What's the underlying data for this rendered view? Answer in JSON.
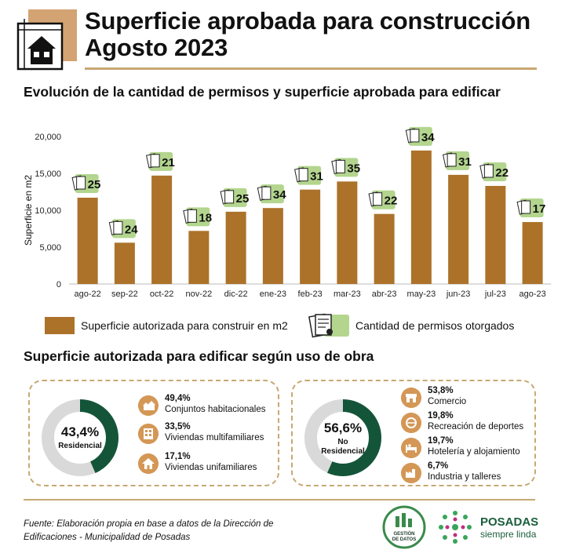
{
  "header": {
    "title_line1": "Superficie aprobada para construcción",
    "title_line2": "Agosto 2023"
  },
  "section1_title": "Evolución de la cantidad de permisos y superficie aprobada para edificar",
  "chart_data": {
    "type": "bar",
    "title": "Evolución de la cantidad de permisos y superficie aprobada para edificar",
    "xlabel": "",
    "ylabel": "Superficie en m2",
    "ylim": [
      0,
      20000
    ],
    "yticks": [
      0,
      5000,
      10000,
      15000,
      20000
    ],
    "ytick_labels": [
      "0",
      "5,000",
      "10,000",
      "15,000",
      "20,000"
    ],
    "categories": [
      "ago-22",
      "sep-22",
      "oct-22",
      "nov-22",
      "dic-22",
      "ene-23",
      "feb-23",
      "mar-23",
      "abr-23",
      "may-23",
      "jun-23",
      "jul-23",
      "ago-23"
    ],
    "series": [
      {
        "name": "Superficie autorizada para construir en m2",
        "values": [
          11700,
          5600,
          14700,
          7200,
          9800,
          10300,
          12800,
          13900,
          9500,
          18100,
          14800,
          13300,
          8400
        ]
      },
      {
        "name": "Cantidad de permisos otorgados",
        "values": [
          25,
          24,
          21,
          18,
          25,
          34,
          31,
          35,
          22,
          34,
          31,
          22,
          17
        ]
      }
    ],
    "colors": {
      "bar": "#ac722a",
      "badge": "#b3d58e"
    }
  },
  "legend": {
    "surface": "Superficie autorizada para construir en m2",
    "permits": "Cantidad de permisos otorgados"
  },
  "section2_title": "Superficie autorizada para edificar según uso de obra",
  "residencial": {
    "pct": "43,4%",
    "label": "Residencial",
    "value": 43.4,
    "items": [
      {
        "pct": "49,4%",
        "name": "Conjuntos habitacionales",
        "icon": "housing-complex-icon"
      },
      {
        "pct": "33,5%",
        "name": "Viviendas multifamiliares",
        "icon": "apartment-building-icon"
      },
      {
        "pct": "17,1%",
        "name": "Viviendas unifamiliares",
        "icon": "house-icon"
      }
    ]
  },
  "no_residencial": {
    "pct": "56,6%",
    "label_line1": "No",
    "label_line2": "Residencial",
    "value": 56.6,
    "items": [
      {
        "pct": "53,8%",
        "name": "Comercio",
        "icon": "store-icon"
      },
      {
        "pct": "19,8%",
        "name": "Recreación de deportes",
        "icon": "sports-icon"
      },
      {
        "pct": "19,7%",
        "name": "Hotelería y alojamiento",
        "icon": "hotel-icon"
      },
      {
        "pct": "6,7%",
        "name": "Industria y talleres",
        "icon": "factory-icon"
      }
    ]
  },
  "colors": {
    "donut": "#14553a",
    "track": "#d9d9d9",
    "accent": "#c8a872",
    "icon_bg": "#d49756"
  },
  "footer": {
    "source_line1": "Fuente: Elaboración propia en base a datos de la Dirección de",
    "source_line2": "Edificaciones - Municipalidad de Posadas",
    "gestion_line1": "GESTIÓN",
    "gestion_line2": "DE DATOS",
    "posadas_name": "POSADAS",
    "posadas_tag": "siempre linda"
  }
}
